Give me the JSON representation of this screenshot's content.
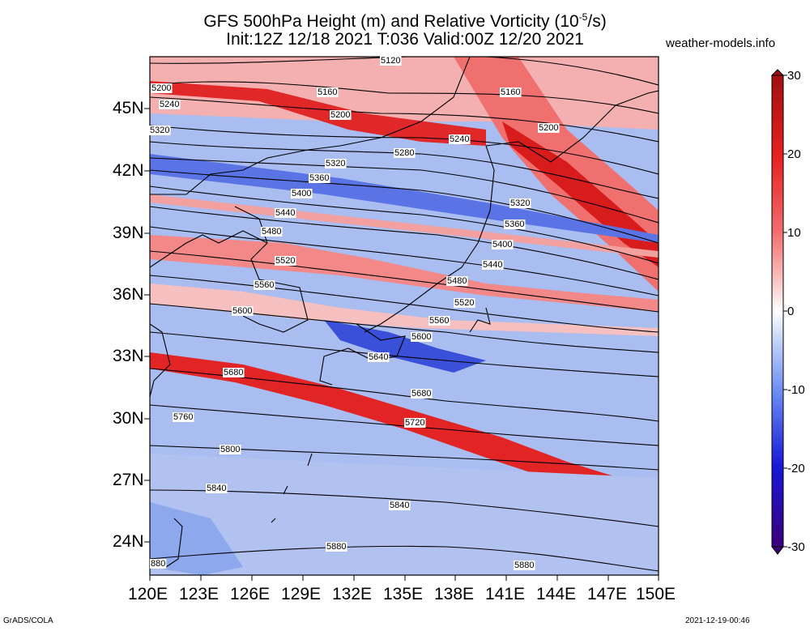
{
  "header": {
    "title_line1": "GFS 500hPa Height (m) and Relative Vorticity (10",
    "title_exp": "-5",
    "title_unit_tail": "/s)",
    "title_line2": "Init:12Z 12/18 2021 T:036 Valid:00Z 12/20 2021",
    "site": "weather-models.info"
  },
  "footer": {
    "left": "GrADS/COLA",
    "right": "2021-12-19-00:46"
  },
  "axes": {
    "lat_labels": [
      "45N",
      "42N",
      "39N",
      "36N",
      "33N",
      "30N",
      "27N",
      "24N"
    ],
    "lon_labels": [
      "120E",
      "123E",
      "126E",
      "129E",
      "132E",
      "135E",
      "138E",
      "141E",
      "144E",
      "147E",
      "150E"
    ]
  },
  "colorbar": {
    "labels": [
      "30",
      "20",
      "10",
      "0",
      "-10",
      "-20",
      "-30"
    ],
    "colors": [
      "#4b0082",
      "#1f1fd6",
      "#4d70f0",
      "#9cb4f5",
      "#ffffff",
      "#f5a2a2",
      "#f04848",
      "#d11818",
      "#a30f0f"
    ]
  },
  "contour_labels": [
    {
      "text": "5120",
      "id": "c5120"
    },
    {
      "text": "5160",
      "id": "c5160a"
    },
    {
      "text": "5160",
      "id": "c5160b"
    },
    {
      "text": "5200",
      "id": "c5200a"
    },
    {
      "text": "5200",
      "id": "c5200b"
    },
    {
      "text": "5200",
      "id": "c5200c"
    },
    {
      "text": "5240",
      "id": "c5240a"
    },
    {
      "text": "5240",
      "id": "c5240b"
    },
    {
      "text": "5280",
      "id": "c5280"
    },
    {
      "text": "5320",
      "id": "c5320a"
    },
    {
      "text": "5320",
      "id": "c5320b"
    },
    {
      "text": "5320",
      "id": "c5320c"
    },
    {
      "text": "5360",
      "id": "c5360a"
    },
    {
      "text": "5360",
      "id": "c5360b"
    },
    {
      "text": "5400",
      "id": "c5400a"
    },
    {
      "text": "5400",
      "id": "c5400b"
    },
    {
      "text": "5440",
      "id": "c5440a"
    },
    {
      "text": "5440",
      "id": "c5440b"
    },
    {
      "text": "5480",
      "id": "c5480a"
    },
    {
      "text": "5480",
      "id": "c5480b"
    },
    {
      "text": "5520",
      "id": "c5520a"
    },
    {
      "text": "5520",
      "id": "c5520b"
    },
    {
      "text": "5560",
      "id": "c5560a"
    },
    {
      "text": "5560",
      "id": "c5560b"
    },
    {
      "text": "5600",
      "id": "c5600a"
    },
    {
      "text": "5600",
      "id": "c5600b"
    },
    {
      "text": "5640",
      "id": "c5640"
    },
    {
      "text": "5680",
      "id": "c5680a"
    },
    {
      "text": "5680",
      "id": "c5680b"
    },
    {
      "text": "5720",
      "id": "c5720"
    },
    {
      "text": "5760",
      "id": "c5760"
    },
    {
      "text": "5800",
      "id": "c5800"
    },
    {
      "text": "5840",
      "id": "c5840a"
    },
    {
      "text": "5840",
      "id": "c5840b"
    },
    {
      "text": "5880",
      "id": "c5880a"
    },
    {
      "text": "5880",
      "id": "c5880b"
    },
    {
      "text": "880",
      "id": "c880"
    }
  ]
}
